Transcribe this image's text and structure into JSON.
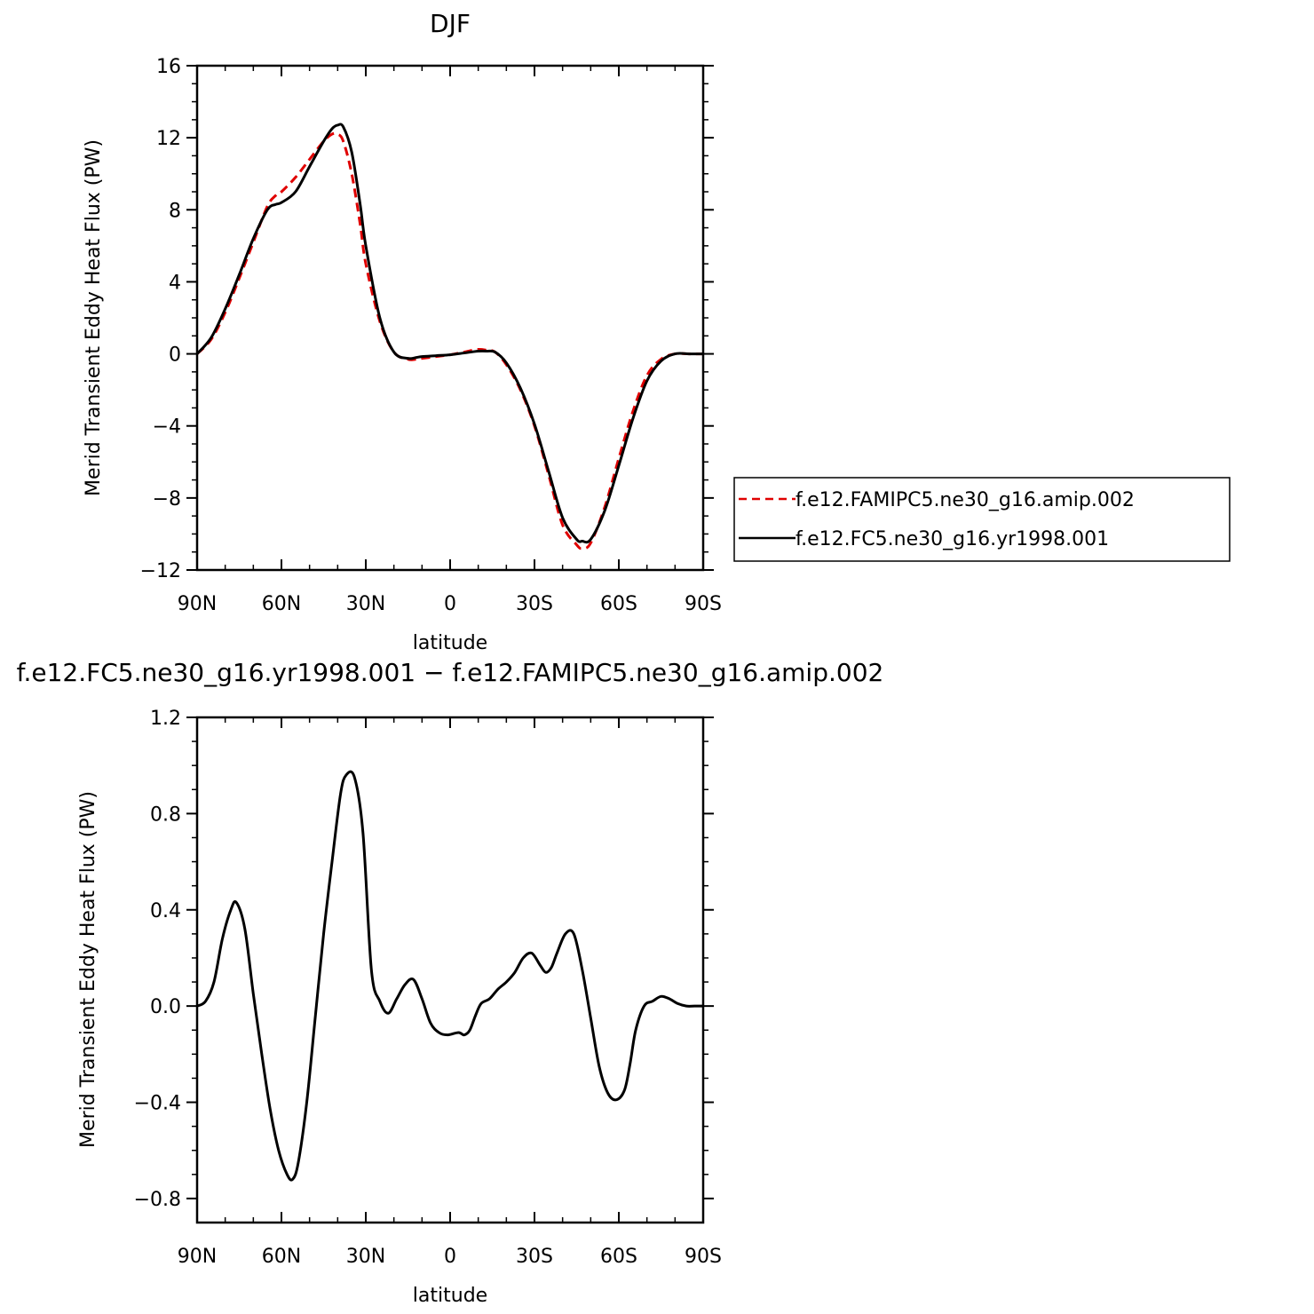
{
  "colors": {
    "series_a": "#e00000",
    "series_b": "#000000",
    "axes": "#000000"
  },
  "chart_data": [
    {
      "type": "line",
      "title": "DJF",
      "xlabel": "latitude",
      "ylabel": "Merid Transient Eddy Heat Flux (PW)",
      "xlim": [
        90,
        -90
      ],
      "ylim": [
        -12,
        16
      ],
      "x_ticks": [
        90,
        60,
        30,
        0,
        -30,
        -60,
        -90
      ],
      "x_tick_labels": [
        "90N",
        "60N",
        "30N",
        "0",
        "30S",
        "60S",
        "90S"
      ],
      "y_ticks": [
        -12,
        -8,
        -4,
        0,
        4,
        8,
        12,
        16
      ],
      "y_tick_labels": [
        "−12",
        "−8",
        "−4",
        "0",
        "4",
        "8",
        "12",
        "16"
      ],
      "legend": {
        "position": "right"
      },
      "series": [
        {
          "name": "f.e12.FAMIPC5.ne30_g16.amip.002",
          "style": "dashed",
          "color": "#e00000",
          "x": [
            90,
            85,
            80,
            75,
            70,
            65,
            62,
            60,
            55,
            50,
            45,
            42,
            40,
            38,
            35,
            32,
            30,
            25,
            20,
            15,
            12,
            10,
            5,
            0,
            -5,
            -10,
            -13,
            -16,
            -20,
            -25,
            -30,
            -35,
            -40,
            -45,
            -47,
            -50,
            -55,
            -60,
            -65,
            -70,
            -75,
            -80,
            -85,
            -90
          ],
          "y": [
            0,
            0.8,
            2.3,
            4.2,
            6.2,
            8.2,
            8.8,
            9.0,
            9.8,
            10.8,
            11.8,
            12.2,
            12.2,
            11.8,
            10.0,
            7.2,
            5.0,
            1.8,
            0.1,
            -0.3,
            -0.3,
            -0.25,
            -0.15,
            -0.05,
            0.1,
            0.25,
            0.2,
            0.1,
            -0.6,
            -2.0,
            -4.0,
            -6.7,
            -9.5,
            -10.6,
            -10.8,
            -10.5,
            -8.5,
            -5.8,
            -3.2,
            -1.2,
            -0.3,
            0,
            0,
            0
          ]
        },
        {
          "name": "f.e12.FC5.ne30_g16.yr1998.001",
          "style": "solid",
          "color": "#000000",
          "x": [
            90,
            85,
            80,
            75,
            70,
            65,
            62,
            60,
            55,
            50,
            45,
            42,
            40,
            38,
            35,
            32,
            30,
            25,
            20,
            15,
            12,
            10,
            5,
            0,
            -5,
            -10,
            -13,
            -16,
            -20,
            -25,
            -30,
            -35,
            -40,
            -45,
            -47,
            -50,
            -55,
            -60,
            -65,
            -70,
            -75,
            -80,
            -85,
            -90
          ],
          "y": [
            0,
            0.9,
            2.5,
            4.4,
            6.4,
            8.0,
            8.3,
            8.4,
            9.0,
            10.4,
            11.8,
            12.5,
            12.7,
            12.6,
            11.2,
            8.3,
            6.0,
            2.0,
            0.1,
            -0.25,
            -0.2,
            -0.15,
            -0.1,
            -0.05,
            0.05,
            0.15,
            0.15,
            0.1,
            -0.5,
            -1.9,
            -3.9,
            -6.5,
            -9.1,
            -10.3,
            -10.4,
            -10.3,
            -8.7,
            -6.2,
            -3.6,
            -1.5,
            -0.4,
            0,
            0,
            0
          ]
        }
      ]
    },
    {
      "type": "line",
      "title": "f.e12.FC5.ne30_g16.yr1998.001 − f.e12.FAMIPC5.ne30_g16.amip.002",
      "xlabel": "latitude",
      "ylabel": "Merid Transient Eddy Heat Flux (PW)",
      "xlim": [
        90,
        -90
      ],
      "ylim": [
        -0.9,
        1.2
      ],
      "x_ticks": [
        90,
        60,
        30,
        0,
        -30,
        -60,
        -90
      ],
      "x_tick_labels": [
        "90N",
        "60N",
        "30N",
        "0",
        "30S",
        "60S",
        "90S"
      ],
      "y_ticks": [
        -0.8,
        -0.4,
        0.0,
        0.4,
        0.8,
        1.2
      ],
      "y_tick_labels": [
        "−0.8",
        "−0.4",
        "0.0",
        "0.4",
        "0.8",
        "1.2"
      ],
      "series": [
        {
          "color": "#000000",
          "x": [
            90,
            87,
            84,
            81,
            78,
            76,
            73,
            70,
            67,
            64,
            61,
            58,
            56,
            54,
            51,
            48,
            45,
            42,
            39,
            37,
            34,
            31,
            28,
            25,
            22,
            19,
            16,
            13,
            10,
            7,
            4,
            1,
            -3,
            -5,
            -7,
            -9,
            -11,
            -14,
            -17,
            -20,
            -23,
            -26,
            -29,
            -32,
            -34,
            -36,
            -38,
            -41,
            -44,
            -47,
            -50,
            -53,
            -56,
            -59,
            -62,
            -64,
            -66,
            -69,
            -72,
            -75,
            -78,
            -81,
            -84,
            -87,
            -90
          ],
          "y": [
            0,
            0.02,
            0.1,
            0.28,
            0.4,
            0.43,
            0.32,
            0.05,
            -0.2,
            -0.43,
            -0.6,
            -0.7,
            -0.72,
            -0.65,
            -0.4,
            -0.05,
            0.3,
            0.6,
            0.88,
            0.96,
            0.95,
            0.72,
            0.15,
            0.02,
            -0.03,
            0.03,
            0.09,
            0.11,
            0.03,
            -0.07,
            -0.11,
            -0.12,
            -0.11,
            -0.12,
            -0.1,
            -0.04,
            0.01,
            0.03,
            0.07,
            0.1,
            0.14,
            0.2,
            0.22,
            0.17,
            0.14,
            0.16,
            0.22,
            0.3,
            0.3,
            0.15,
            -0.05,
            -0.25,
            -0.36,
            -0.39,
            -0.35,
            -0.24,
            -0.1,
            0.0,
            0.02,
            0.04,
            0.03,
            0.01,
            0.0,
            0.0,
            0.0
          ]
        }
      ]
    }
  ]
}
